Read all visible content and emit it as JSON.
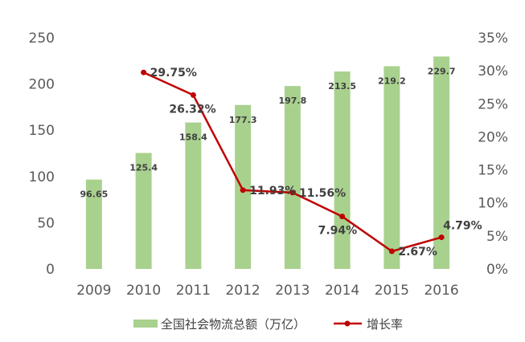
{
  "chart_data": {
    "type": "bar",
    "categories": [
      "2009",
      "2010",
      "2011",
      "2012",
      "2013",
      "2014",
      "2015",
      "2016"
    ],
    "series": [
      {
        "name": "全国社会物流总额（万亿）",
        "type": "bar",
        "axis": "left",
        "color": "#a9d18e",
        "values": [
          96.65,
          125.4,
          158.4,
          177.3,
          197.8,
          213.5,
          219.2,
          229.7
        ],
        "labels": [
          "96.65",
          "125.4",
          "158.4",
          "177.3",
          "197.8",
          "213.5",
          "219.2",
          "229.7"
        ]
      },
      {
        "name": "增长率",
        "type": "line",
        "axis": "right",
        "color": "#c00000",
        "values": [
          null,
          29.75,
          26.32,
          11.93,
          11.56,
          7.94,
          2.67,
          4.79
        ],
        "labels": [
          "",
          "29.75%",
          "26.32%",
          "11.93%",
          "11.56%",
          "7.94%",
          "2.67%",
          "4.79%"
        ]
      }
    ],
    "y_left": {
      "min": 0,
      "max": 250,
      "ticks": [
        "0",
        "50",
        "100",
        "150",
        "200",
        "250"
      ]
    },
    "y_right": {
      "min": 0,
      "max": 35,
      "ticks": [
        "0%",
        "5%",
        "10%",
        "15%",
        "20%",
        "25%",
        "30%",
        "35%"
      ]
    },
    "title": "",
    "xlabel": "",
    "ylabel": "",
    "grid": false,
    "legend_position": "bottom"
  }
}
